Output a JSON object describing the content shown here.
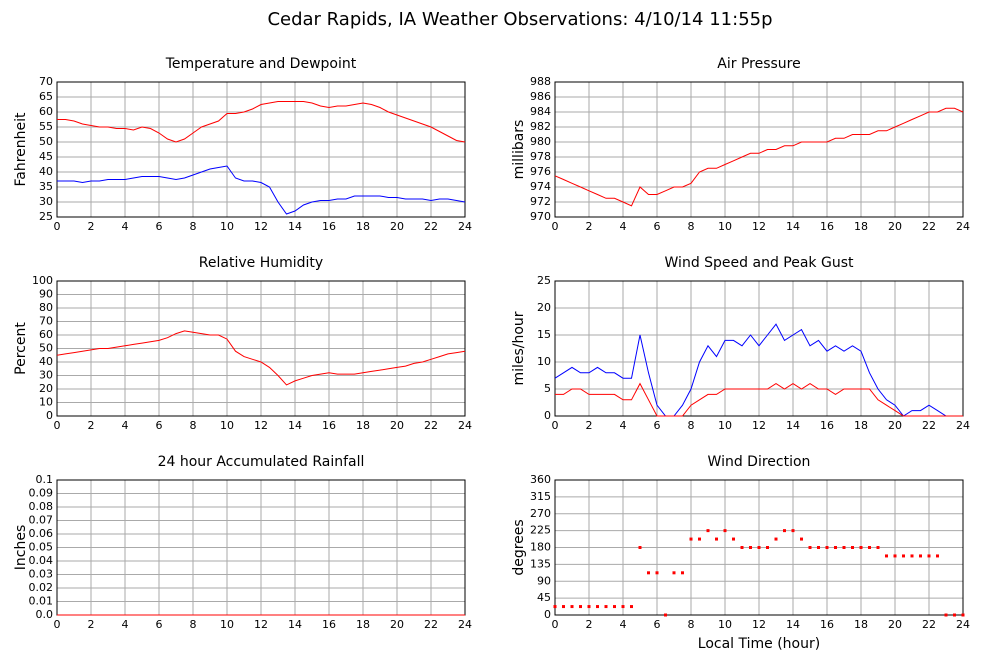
{
  "title": "Cedar Rapids, IA Weather Observations: 4/10/14 11:55p",
  "chart_data": [
    {
      "type": "line",
      "title": "Temperature and Dewpoint",
      "y_label": "Fahrenheit",
      "grid": true,
      "xlim": [
        0,
        24
      ],
      "xticks": [
        0,
        2,
        4,
        6,
        8,
        10,
        12,
        14,
        16,
        18,
        20,
        22,
        24
      ],
      "ylim": [
        25,
        70
      ],
      "yticks": [
        25,
        30,
        35,
        40,
        45,
        50,
        55,
        60,
        65,
        70
      ],
      "x": [
        0,
        0.5,
        1,
        1.5,
        2,
        2.5,
        3,
        3.5,
        4,
        4.5,
        5,
        5.5,
        6,
        6.5,
        7,
        7.5,
        8,
        8.5,
        9,
        9.5,
        10,
        10.5,
        11,
        11.5,
        12,
        12.5,
        13,
        13.5,
        14,
        14.5,
        15,
        15.5,
        16,
        16.5,
        17,
        17.5,
        18,
        18.5,
        19,
        19.5,
        20,
        20.5,
        21,
        21.5,
        22,
        22.5,
        23,
        23.5,
        24
      ],
      "series": [
        {
          "color": "#ff0000",
          "values": [
            57.5,
            57.5,
            57,
            56,
            55.5,
            55,
            55,
            54.5,
            54.5,
            54,
            55,
            54.5,
            53,
            51,
            50,
            51,
            53,
            55,
            56,
            57,
            59.5,
            59.5,
            60,
            61,
            62.5,
            63,
            63.5,
            63.5,
            63.5,
            63.5,
            63,
            62,
            61.5,
            62,
            62,
            62.5,
            63,
            62.5,
            61.5,
            60,
            59,
            58,
            57,
            56,
            55,
            53.5,
            52,
            50.5,
            50
          ]
        },
        {
          "color": "#0000ff",
          "values": [
            37,
            37,
            37,
            36.5,
            37,
            37,
            37.5,
            37.5,
            37.5,
            38,
            38.5,
            38.5,
            38.5,
            38,
            37.5,
            38,
            39,
            40,
            41,
            41.5,
            42,
            38,
            37,
            37,
            36.5,
            35,
            30,
            26,
            27,
            29,
            30,
            30.5,
            30.5,
            31,
            31,
            32,
            32,
            32,
            32,
            31.5,
            31.5,
            31,
            31,
            31,
            30.5,
            31,
            31,
            30.5,
            30
          ]
        }
      ]
    },
    {
      "type": "line",
      "title": "Air Pressure",
      "y_label": "millibars",
      "grid": true,
      "xlim": [
        0,
        24
      ],
      "xticks": [
        0,
        2,
        4,
        6,
        8,
        10,
        12,
        14,
        16,
        18,
        20,
        22,
        24
      ],
      "ylim": [
        970,
        988
      ],
      "yticks": [
        970,
        972,
        974,
        976,
        978,
        980,
        982,
        984,
        986,
        988
      ],
      "x": [
        0,
        0.5,
        1,
        1.5,
        2,
        2.5,
        3,
        3.5,
        4,
        4.5,
        5,
        5.5,
        6,
        6.5,
        7,
        7.5,
        8,
        8.5,
        9,
        9.5,
        10,
        10.5,
        11,
        11.5,
        12,
        12.5,
        13,
        13.5,
        14,
        14.5,
        15,
        15.5,
        16,
        16.5,
        17,
        17.5,
        18,
        18.5,
        19,
        19.5,
        20,
        20.5,
        21,
        21.5,
        22,
        22.5,
        23,
        23.5,
        24
      ],
      "series": [
        {
          "color": "#ff0000",
          "values": [
            975.5,
            975,
            974.5,
            974,
            973.5,
            973,
            972.5,
            972.5,
            972,
            971.5,
            974,
            973,
            973,
            973.5,
            974,
            974,
            974.5,
            976,
            976.5,
            976.5,
            977,
            977.5,
            978,
            978.5,
            978.5,
            979,
            979,
            979.5,
            979.5,
            980,
            980,
            980,
            980,
            980.5,
            980.5,
            981,
            981,
            981,
            981.5,
            981.5,
            982,
            982.5,
            983,
            983.5,
            984,
            984,
            984.5,
            984.5,
            984
          ]
        }
      ]
    },
    {
      "type": "line",
      "title": "Relative Humidity",
      "y_label": "Percent",
      "grid": true,
      "xlim": [
        0,
        24
      ],
      "xticks": [
        0,
        2,
        4,
        6,
        8,
        10,
        12,
        14,
        16,
        18,
        20,
        22,
        24
      ],
      "ylim": [
        0,
        100
      ],
      "yticks": [
        0,
        10,
        20,
        30,
        40,
        50,
        60,
        70,
        80,
        90,
        100
      ],
      "x": [
        0,
        0.5,
        1,
        1.5,
        2,
        2.5,
        3,
        3.5,
        4,
        4.5,
        5,
        5.5,
        6,
        6.5,
        7,
        7.5,
        8,
        8.5,
        9,
        9.5,
        10,
        10.5,
        11,
        11.5,
        12,
        12.5,
        13,
        13.5,
        14,
        14.5,
        15,
        15.5,
        16,
        16.5,
        17,
        17.5,
        18,
        18.5,
        19,
        19.5,
        20,
        20.5,
        21,
        21.5,
        22,
        22.5,
        23,
        23.5,
        24
      ],
      "series": [
        {
          "color": "#ff0000",
          "values": [
            45,
            46,
            47,
            48,
            49,
            50,
            50,
            51,
            52,
            53,
            54,
            55,
            56,
            58,
            61,
            63,
            62,
            61,
            60,
            60,
            57,
            48,
            44,
            42,
            40,
            36,
            30,
            23,
            26,
            28,
            30,
            31,
            32,
            31,
            31,
            31,
            32,
            33,
            34,
            35,
            36,
            37,
            39,
            40,
            42,
            44,
            46,
            47,
            48
          ]
        }
      ]
    },
    {
      "type": "line",
      "title": "Wind Speed and Peak Gust",
      "y_label": "miles/hour",
      "grid": true,
      "xlim": [
        0,
        24
      ],
      "xticks": [
        0,
        2,
        4,
        6,
        8,
        10,
        12,
        14,
        16,
        18,
        20,
        22,
        24
      ],
      "ylim": [
        0,
        25
      ],
      "yticks": [
        0,
        5,
        10,
        15,
        20,
        25
      ],
      "x": [
        0,
        0.5,
        1,
        1.5,
        2,
        2.5,
        3,
        3.5,
        4,
        4.5,
        5,
        5.5,
        6,
        6.5,
        7,
        7.5,
        8,
        8.5,
        9,
        9.5,
        10,
        10.5,
        11,
        11.5,
        12,
        12.5,
        13,
        13.5,
        14,
        14.5,
        15,
        15.5,
        16,
        16.5,
        17,
        17.5,
        18,
        18.5,
        19,
        19.5,
        20,
        20.5,
        21,
        21.5,
        22,
        22.5,
        23,
        23.5,
        24
      ],
      "series": [
        {
          "color": "#0000ff",
          "values": [
            7,
            8,
            9,
            8,
            8,
            9,
            8,
            8,
            7,
            7,
            15,
            8,
            2,
            0,
            0,
            2,
            5,
            10,
            13,
            11,
            14,
            14,
            13,
            15,
            13,
            15,
            17,
            14,
            15,
            16,
            13,
            14,
            12,
            13,
            12,
            13,
            12,
            8,
            5,
            3,
            2,
            0,
            1,
            1,
            2,
            1,
            0,
            0,
            0
          ]
        },
        {
          "color": "#ff0000",
          "values": [
            4,
            4,
            5,
            5,
            4,
            4,
            4,
            4,
            3,
            3,
            6,
            3,
            0,
            0,
            0,
            0,
            2,
            3,
            4,
            4,
            5,
            5,
            5,
            5,
            5,
            5,
            6,
            5,
            6,
            5,
            6,
            5,
            5,
            4,
            5,
            5,
            5,
            5,
            3,
            2,
            1,
            0,
            0,
            0,
            0,
            0,
            0,
            0,
            0
          ]
        }
      ]
    },
    {
      "type": "line",
      "title": "24 hour Accumulated Rainfall",
      "y_label": "Inches",
      "grid": true,
      "xlim": [
        0,
        24
      ],
      "xticks": [
        0,
        2,
        4,
        6,
        8,
        10,
        12,
        14,
        16,
        18,
        20,
        22,
        24
      ],
      "ylim": [
        0,
        0.1
      ],
      "yticks": [
        {
          "value": 0,
          "label": "0.0"
        },
        0.01,
        0.02,
        0.03,
        0.04,
        0.05,
        0.06,
        0.07,
        0.08,
        0.09,
        0.1
      ],
      "x": [
        0,
        24
      ],
      "series": [
        {
          "color": "#ff0000",
          "values": [
            0,
            0
          ]
        }
      ]
    },
    {
      "type": "scatter",
      "title": "Wind Direction",
      "y_label": "degrees",
      "x_label": "Local Time (hour)",
      "grid": true,
      "xlim": [
        0,
        24
      ],
      "xticks": [
        0,
        2,
        4,
        6,
        8,
        10,
        12,
        14,
        16,
        18,
        20,
        22,
        24
      ],
      "ylim": [
        0,
        360
      ],
      "yticks": [
        0,
        45,
        90,
        135,
        180,
        225,
        270,
        315,
        360
      ],
      "x": [
        0,
        0.5,
        1,
        1.5,
        2,
        2.5,
        3,
        3.5,
        4,
        4.5,
        5,
        5.5,
        6,
        6.5,
        7,
        7.5,
        8,
        8.5,
        9,
        9.5,
        10,
        10.5,
        11,
        11.5,
        12,
        12.5,
        13,
        13.5,
        14,
        14.5,
        15,
        15.5,
        16,
        16.5,
        17,
        17.5,
        18,
        18.5,
        19,
        19.5,
        20,
        20.5,
        21,
        21.5,
        22,
        22.5,
        23,
        23.5,
        24
      ],
      "series": [
        {
          "color": "#ff0000",
          "values": [
            22.5,
            22.5,
            22.5,
            22.5,
            22.5,
            22.5,
            22.5,
            22.5,
            22.5,
            22.5,
            180,
            112.5,
            112.5,
            0,
            112.5,
            112.5,
            202.5,
            202.5,
            225,
            202.5,
            225,
            202.5,
            180,
            180,
            180,
            180,
            202.5,
            225,
            225,
            202.5,
            180,
            180,
            180,
            180,
            180,
            180,
            180,
            180,
            180,
            157.5,
            157.5,
            157.5,
            157.5,
            157.5,
            157.5,
            157.5,
            0,
            0,
            0
          ]
        }
      ]
    }
  ]
}
